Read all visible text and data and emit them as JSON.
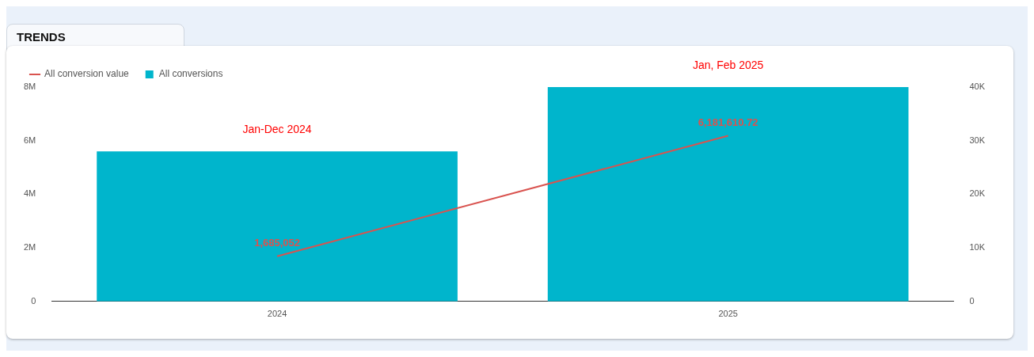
{
  "chart_data": {
    "type": "bar",
    "title": "TRENDS",
    "categories": [
      "2024",
      "2025"
    ],
    "series": [
      {
        "name": "All conversion value",
        "type": "line",
        "color": "#d9534f",
        "values": [
          1685052,
          6181610.72
        ],
        "value_labels": [
          "1,685,052",
          "6,181,610.72"
        ]
      },
      {
        "name": "All conversions",
        "color": "#00b5cc",
        "values": [
          28000,
          40000
        ],
        "axis": "y2"
      }
    ],
    "ylim": [
      0,
      8000000
    ],
    "yticks": [
      {
        "value": 0,
        "label": "0"
      },
      {
        "value": 2000000,
        "label": "2M"
      },
      {
        "value": 4000000,
        "label": "4M"
      },
      {
        "value": 6000000,
        "label": "6M"
      },
      {
        "value": 8000000,
        "label": "8M"
      }
    ],
    "y2lim": [
      0,
      40000
    ],
    "y2ticks": [
      {
        "value": 0,
        "label": "0"
      },
      {
        "value": 10000,
        "label": "10K"
      },
      {
        "value": 20000,
        "label": "20K"
      },
      {
        "value": 30000,
        "label": "30K"
      },
      {
        "value": 40000,
        "label": "40K"
      }
    ],
    "annotations": [
      "Jan-Dec 2024",
      "Jan, Feb 2025"
    ],
    "legend": "top left",
    "grid": false,
    "marker": "none"
  }
}
